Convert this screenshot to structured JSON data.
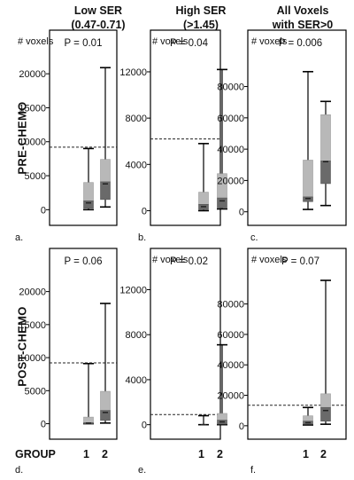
{
  "column_titles": [
    {
      "line1": "Low SER",
      "line2": "(0.47-0.71)"
    },
    {
      "line1": "High SER",
      "line2": "(>1.45)"
    },
    {
      "line1": "All Voxels",
      "line2": "with SER>0"
    }
  ],
  "row_labels": [
    "PRE-CHEMO",
    "POST-CHEMO"
  ],
  "group_label": "GROUP",
  "group_ticks": [
    "1",
    "2"
  ],
  "chart_data": [
    {
      "panel": "a.",
      "type": "boxplot",
      "ylabel": "# voxels",
      "p_value": "P = 0.01",
      "ylim": [
        -1000,
        22500
      ],
      "yticks": [
        0,
        5000,
        10000,
        15000,
        20000
      ],
      "threshold": 9200,
      "groups": [
        {
          "name": "1",
          "min": 0,
          "q1": 200,
          "median": 1000,
          "q3": 4000,
          "max": 9000,
          "dark_top": 1300
        },
        {
          "name": "2",
          "min": 400,
          "q1": 1500,
          "median": 3800,
          "q3": 7400,
          "max": 20900,
          "dark_top": 4100
        }
      ]
    },
    {
      "panel": "b.",
      "type": "boxplot",
      "ylabel": "# voxels",
      "p_value": "P = 0.04",
      "ylim": [
        -500,
        13300
      ],
      "yticks": [
        0,
        4000,
        8000,
        12000
      ],
      "threshold": 6200,
      "groups": [
        {
          "name": "1",
          "min": 0,
          "q1": 100,
          "median": 350,
          "q3": 1600,
          "max": 5800,
          "dark_top": 550
        },
        {
          "name": "2",
          "min": 150,
          "q1": 250,
          "median": 850,
          "q3": 3200,
          "max": 12200,
          "dark_top": 1100
        }
      ]
    },
    {
      "panel": "c.",
      "type": "boxplot",
      "ylabel": "# voxels",
      "p_value": "P = 0.006",
      "ylim": [
        -3000,
        99000
      ],
      "yticks": [
        0,
        20000,
        40000,
        60000,
        80000
      ],
      "threshold": null,
      "groups": [
        {
          "name": "1",
          "min": 1500,
          "q1": 6500,
          "median": 8500,
          "q3": 33000,
          "max": 89500,
          "dark_top": 9500
        },
        {
          "name": "2",
          "min": 4000,
          "q1": 18000,
          "median": 32000,
          "q3": 62000,
          "max": 70500,
          "dark_top": 32500
        }
      ]
    },
    {
      "panel": "d.",
      "type": "boxplot",
      "ylabel": "",
      "p_value": "P = 0.06",
      "ylim": [
        -1000,
        22500
      ],
      "yticks": [
        0,
        5000,
        10000,
        15000,
        20000
      ],
      "threshold": 9200,
      "groups": [
        {
          "name": "1",
          "min": 0,
          "q1": 0,
          "median": 100,
          "q3": 1000,
          "max": 9100,
          "dark_top": 150
        },
        {
          "name": "2",
          "min": 100,
          "q1": 500,
          "median": 1700,
          "q3": 4900,
          "max": 18200,
          "dark_top": 2000
        }
      ]
    },
    {
      "panel": "e.",
      "type": "boxplot",
      "ylabel": "# voxels",
      "p_value": "P = 0.02",
      "ylim": [
        -500,
        13300
      ],
      "yticks": [
        0,
        4000,
        8000,
        12000
      ],
      "threshold": 900,
      "groups": [
        {
          "name": "1",
          "min": 0,
          "q1": 0,
          "median": 0,
          "q3": 0,
          "max": 800,
          "dark_top": 0
        },
        {
          "name": "2",
          "min": 0,
          "q1": 50,
          "median": 250,
          "q3": 1000,
          "max": 7100,
          "dark_top": 400
        }
      ]
    },
    {
      "panel": "f.",
      "type": "boxplot",
      "ylabel": "# voxels",
      "p_value": "P = 0.07",
      "ylim": [
        -3000,
        99000
      ],
      "yticks": [
        0,
        20000,
        40000,
        60000,
        80000
      ],
      "threshold": 13500,
      "groups": [
        {
          "name": "1",
          "min": 500,
          "q1": 1000,
          "median": 2000,
          "q3": 6500,
          "max": 12000,
          "dark_top": 3000
        },
        {
          "name": "2",
          "min": 1000,
          "q1": 3000,
          "median": 10000,
          "q3": 21000,
          "max": 95500,
          "dark_top": 12000
        }
      ]
    }
  ]
}
